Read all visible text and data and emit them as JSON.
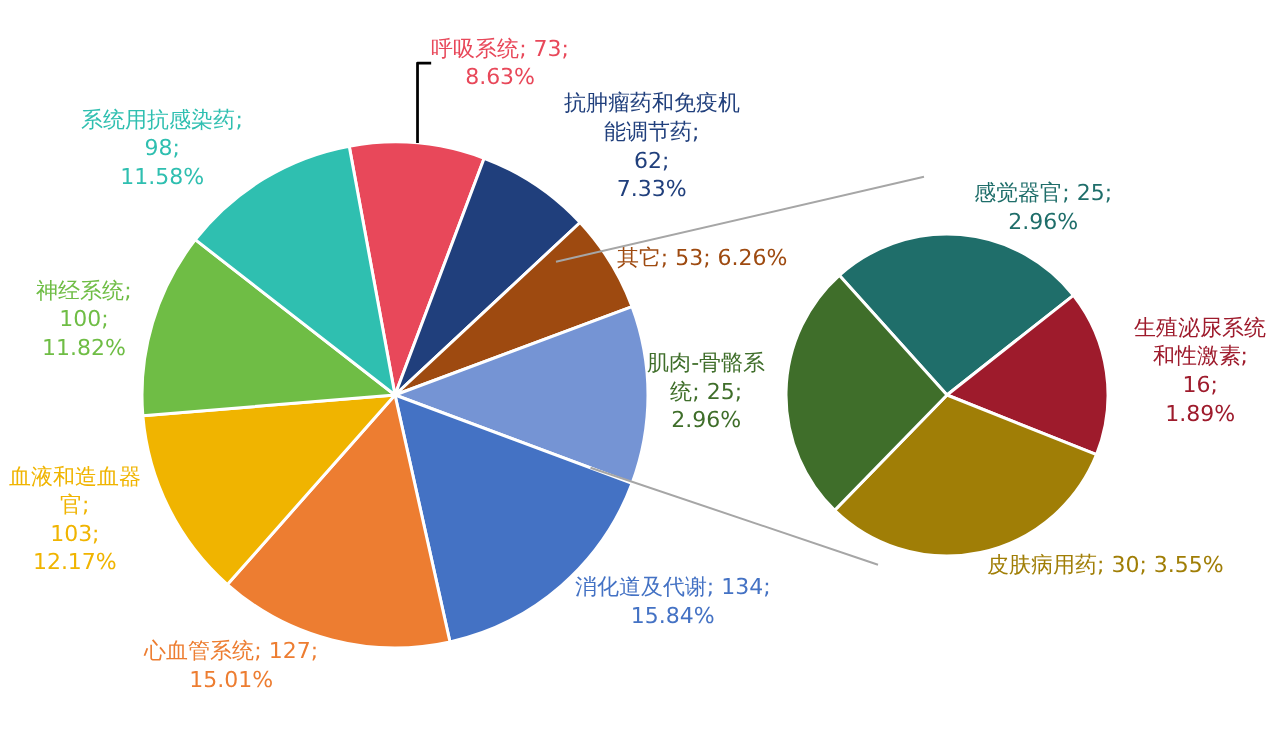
{
  "chart_data": [
    {
      "type": "pie",
      "categories": [
        "呼吸系统",
        "抗肿瘤药和免疫机能调节药",
        "其它",
        null,
        "消化道及代谢",
        "心血管系统",
        "血液和造血器官",
        "神经系统",
        "系统用抗感染药"
      ],
      "values": [
        73,
        62,
        53,
        96,
        134,
        127,
        103,
        100,
        98
      ],
      "colors": [
        "#e8485a",
        "#203f7c",
        "#9e4a10",
        "#7594d4",
        "#4472c4",
        "#ed7d31",
        "#f0b400",
        "#6fbd45",
        "#2fbfb0"
      ],
      "value_labels": [
        "; 73; 8.63%",
        "; 62; 7.33%",
        "; 53; 6.26%",
        null,
        "; 134; 15.84%",
        "; 127; 15.01%",
        "; 103; 12.17%",
        "; 100; 11.82%",
        "; 98; 11.58%"
      ]
    },
    {
      "type": "pie",
      "categories": [
        "感觉器官",
        "生殖泌尿系统和性激素",
        "皮肤病用药",
        "肌肉-骨骼系统"
      ],
      "values": [
        25,
        16,
        30,
        25
      ],
      "colors": [
        "#1f6e6a",
        "#9e1b2c",
        "#a07e06",
        "#3f6e2a"
      ],
      "value_labels": [
        "; 25; 2.96%",
        "; 16; 1.89%",
        "; 30; 3.55%",
        "; 25; 2.96%"
      ]
    }
  ]
}
